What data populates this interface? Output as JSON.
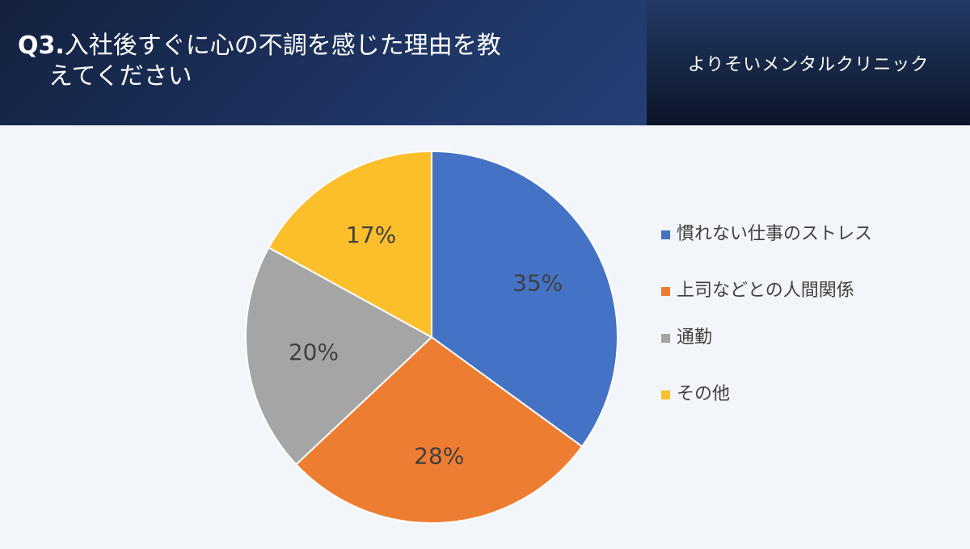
{
  "header": {
    "question_no": "Q3.",
    "title_line1": "入社後すぐに心の不調を感じた理由を教",
    "title_line2": "えてください",
    "clinic_name": "よりそいメンタルクリニック"
  },
  "chart_data": {
    "type": "pie",
    "legend_position": "right",
    "slices": [
      {
        "label": "慣れない仕事のストレス",
        "value": 35,
        "value_label": "35%",
        "color": "#4472c4"
      },
      {
        "label": "上司などとの人間関係",
        "value": 28,
        "value_label": "28%",
        "color": "#ed7d31"
      },
      {
        "label": "通勤",
        "value": 20,
        "value_label": "20%",
        "color": "#a5a5a5"
      },
      {
        "label": "その他",
        "value": 17,
        "value_label": "17%",
        "color": "#fbbf2c"
      }
    ]
  }
}
